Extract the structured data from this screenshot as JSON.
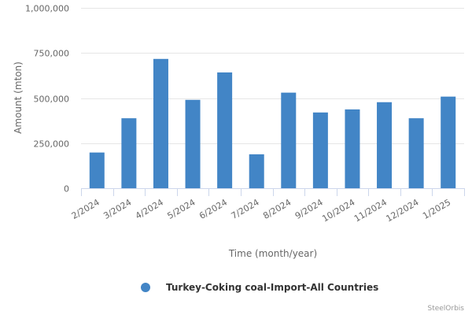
{
  "chart_data": {
    "type": "bar",
    "categories": [
      "2/2024",
      "3/2024",
      "4/2024",
      "5/2024",
      "6/2024",
      "7/2024",
      "8/2024",
      "9/2024",
      "10/2024",
      "11/2024",
      "12/2024",
      "1/2025"
    ],
    "series": [
      {
        "name": "Turkey-Coking coal-Import-All Countries",
        "color": "#4285c6",
        "values": [
          198000,
          388000,
          717000,
          490000,
          642000,
          188000,
          530000,
          420000,
          437000,
          477000,
          388000,
          508000
        ]
      }
    ],
    "title": "",
    "xlabel": "Time (month/year)",
    "ylabel": "Amount (mton)",
    "ylim": [
      0,
      1000000
    ],
    "yticks": [
      0,
      250000,
      500000,
      750000,
      1000000
    ],
    "ytick_labels": [
      "0",
      "250,000",
      "500,000",
      "750,000",
      "1,000,000"
    ],
    "grid": true,
    "legend_position": "bottom-center"
  },
  "credit": "SteelOrbis"
}
